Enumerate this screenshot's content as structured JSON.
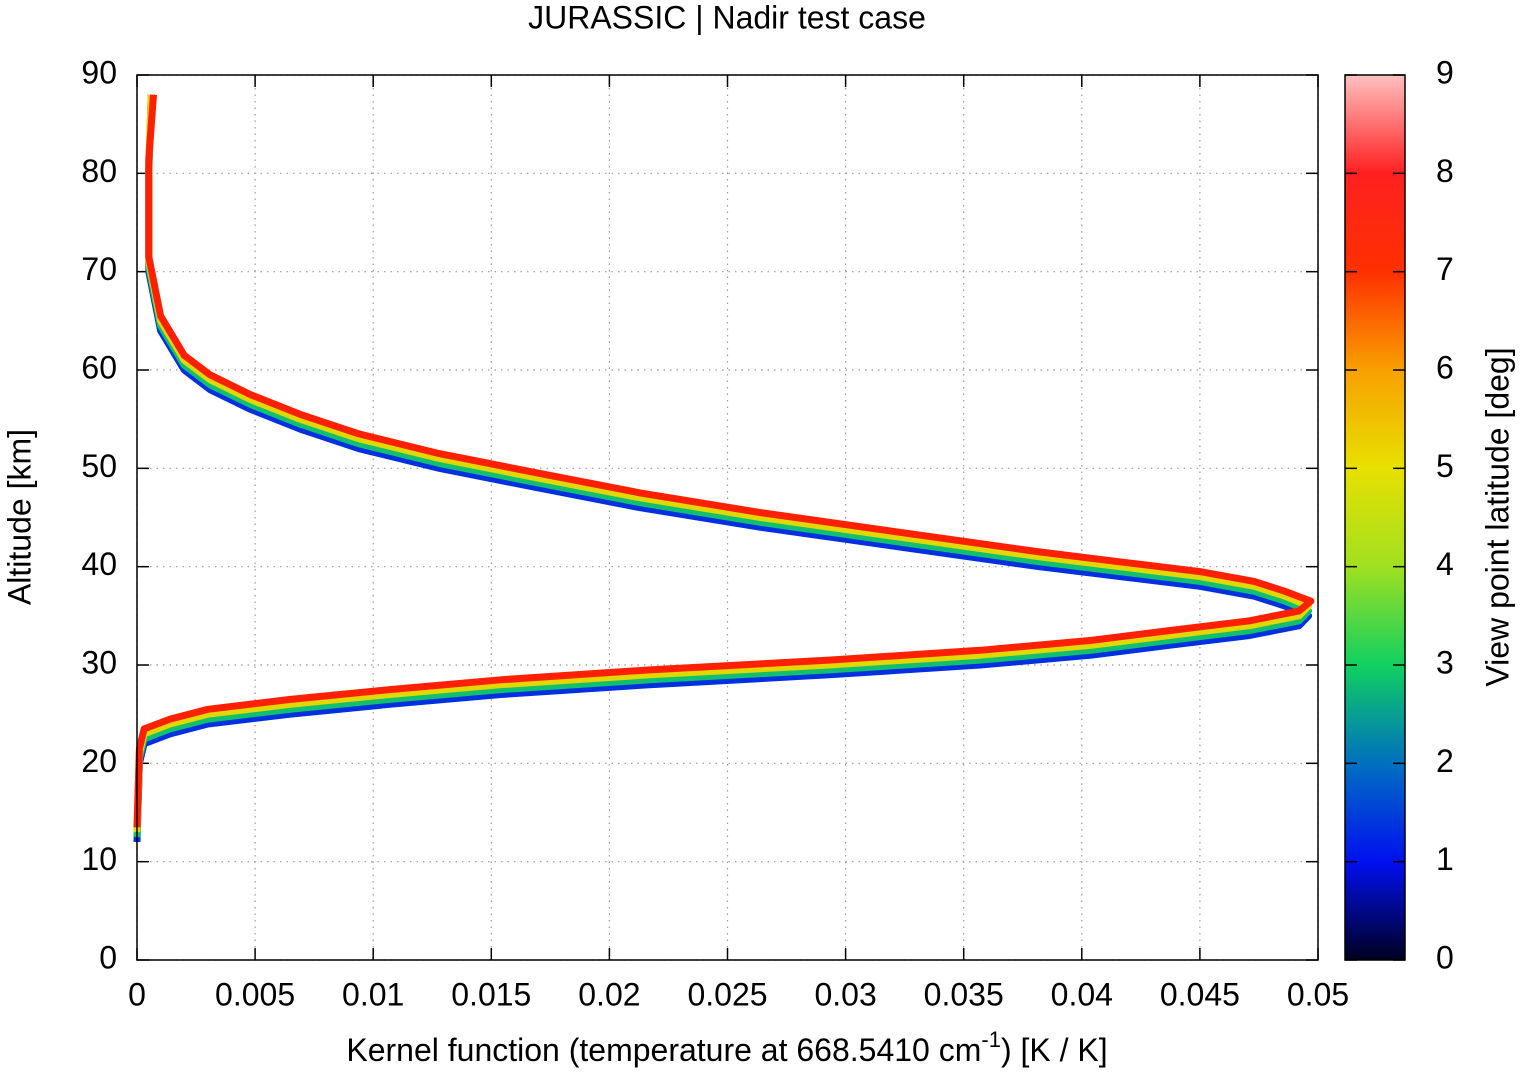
{
  "chart_data": {
    "type": "line",
    "title": "JURASSIC | Nadir test case",
    "xlabel": "Kernel function (temperature at 668.5410 cm",
    "xlabel_sup": "-1",
    "xlabel_end": ") [K / K]",
    "ylabel": "Altitude [km]",
    "xlim": [
      0,
      0.05
    ],
    "xticks": [
      0,
      0.005,
      0.01,
      0.015,
      0.02,
      0.025,
      0.03,
      0.035,
      0.04,
      0.045,
      0.05
    ],
    "ylim": [
      0,
      90
    ],
    "yticks": [
      0,
      10,
      20,
      30,
      40,
      50,
      60,
      70,
      80,
      90
    ],
    "grid": true,
    "colorbar": {
      "label": "View point latitude [deg]",
      "lim": [
        0,
        9
      ],
      "ticks": [
        0,
        1,
        2,
        3,
        4,
        5,
        6,
        7,
        8,
        9
      ],
      "colors": [
        "#000020",
        "#0010f0",
        "#0070c0",
        "#10d060",
        "#a0e020",
        "#e8e000",
        "#f8a000",
        "#ff3000",
        "#ff2020",
        "#ffc0c0"
      ]
    },
    "series": [
      {
        "color": "#0030e0",
        "latitude": 1,
        "y": [
          12,
          20,
          22,
          23,
          24,
          25,
          26,
          27,
          28,
          29,
          30,
          31,
          32,
          33,
          34,
          35,
          36,
          37,
          38,
          39,
          40,
          42,
          44,
          46,
          48,
          50,
          52,
          54,
          56,
          58,
          60,
          64,
          70,
          80,
          88
        ],
        "values": [
          0,
          0.0001,
          0.0003,
          0.0014,
          0.003,
          0.0065,
          0.0107,
          0.0154,
          0.0217,
          0.0293,
          0.0357,
          0.0404,
          0.0437,
          0.0471,
          0.0492,
          0.0496,
          0.0486,
          0.0473,
          0.045,
          0.0416,
          0.0382,
          0.0323,
          0.0264,
          0.0213,
          0.017,
          0.0128,
          0.0094,
          0.0069,
          0.0048,
          0.0031,
          0.002,
          0.001,
          0.0005,
          0.0005,
          0.0006
        ]
      },
      {
        "color": "#10c070",
        "latitude": 3,
        "y": [
          12.5,
          20.5,
          22.5,
          23.5,
          24.5,
          25.5,
          26.5,
          27.5,
          28.5,
          29.5,
          30.5,
          31.5,
          32.5,
          33.5,
          34.5,
          35.5,
          36.5,
          37.5,
          38.5,
          39.5,
          40.5,
          42.5,
          44.5,
          46.5,
          48.5,
          50.5,
          52.5,
          54.5,
          56.5,
          58.5,
          60.5,
          64.5,
          70.5,
          80.5,
          88
        ],
        "values": [
          0,
          0.0001,
          0.0003,
          0.0014,
          0.003,
          0.0065,
          0.0107,
          0.0154,
          0.0217,
          0.0293,
          0.0357,
          0.0404,
          0.0437,
          0.0471,
          0.0492,
          0.0496,
          0.0486,
          0.0473,
          0.045,
          0.0416,
          0.0382,
          0.0323,
          0.0264,
          0.0213,
          0.017,
          0.0128,
          0.0094,
          0.0069,
          0.0048,
          0.0031,
          0.002,
          0.001,
          0.0005,
          0.0005,
          0.0006
        ]
      },
      {
        "color": "#e0d800",
        "latitude": 5,
        "y": [
          13,
          21,
          23,
          24,
          25,
          26,
          27,
          28,
          29,
          30,
          31,
          32,
          33,
          34,
          35,
          36,
          37,
          38,
          39,
          40,
          41,
          43,
          45,
          47,
          49,
          51,
          53,
          55,
          57,
          59,
          61,
          65,
          71,
          81,
          88
        ],
        "values": [
          0,
          0.0001,
          0.0003,
          0.0014,
          0.003,
          0.0065,
          0.0107,
          0.0154,
          0.0217,
          0.0293,
          0.0357,
          0.0404,
          0.0437,
          0.0471,
          0.0492,
          0.0496,
          0.0486,
          0.0473,
          0.045,
          0.0416,
          0.0382,
          0.0323,
          0.0264,
          0.0213,
          0.017,
          0.0128,
          0.0094,
          0.0069,
          0.0048,
          0.0031,
          0.002,
          0.001,
          0.0005,
          0.0005,
          0.0006
        ]
      },
      {
        "color": "#ff2000",
        "latitude": 7,
        "y": [
          13.5,
          21.5,
          23.5,
          24.5,
          25.5,
          26.5,
          27.5,
          28.5,
          29.5,
          30.5,
          31.5,
          32.5,
          33.5,
          34.5,
          35.5,
          36.5,
          37.5,
          38.5,
          39.5,
          40.5,
          41.5,
          43.5,
          45.5,
          47.5,
          49.5,
          51.5,
          53.5,
          55.5,
          57.5,
          59.5,
          61.5,
          65.5,
          71.5,
          81.5,
          88
        ],
        "values": [
          0,
          0.0001,
          0.0003,
          0.0014,
          0.003,
          0.0065,
          0.0107,
          0.0154,
          0.0217,
          0.0293,
          0.0357,
          0.0404,
          0.0437,
          0.0471,
          0.0492,
          0.0497,
          0.0486,
          0.0473,
          0.045,
          0.0416,
          0.0382,
          0.0323,
          0.0264,
          0.0213,
          0.017,
          0.0128,
          0.0094,
          0.0069,
          0.0048,
          0.0031,
          0.002,
          0.001,
          0.0005,
          0.0005,
          0.0007
        ]
      }
    ]
  }
}
